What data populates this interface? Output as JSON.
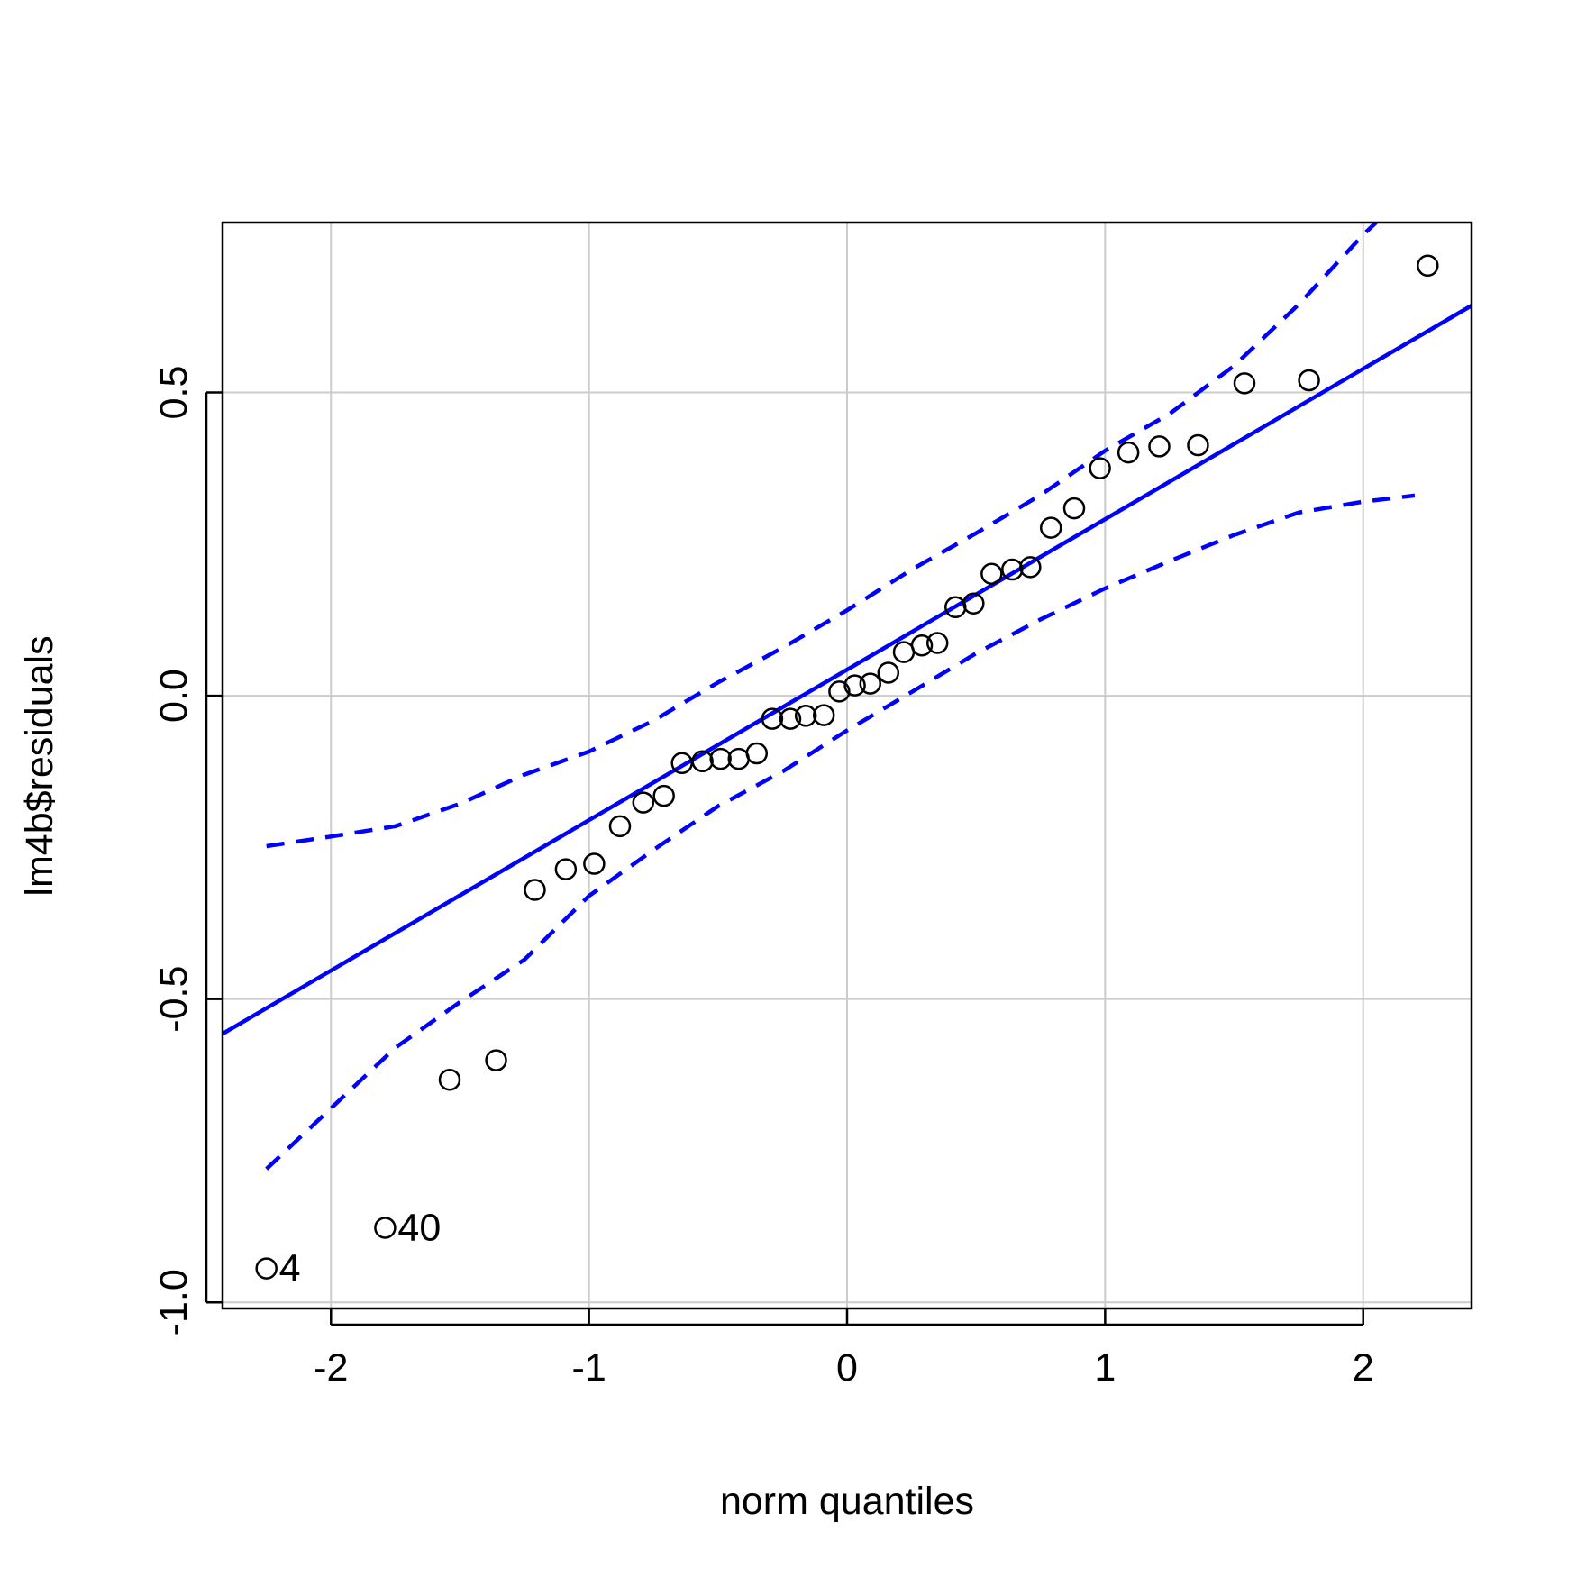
{
  "chart_data": {
    "type": "scatter",
    "title": "",
    "xlabel": "norm quantiles",
    "ylabel": "lm4b$residuals",
    "xlim": [
      -2.42,
      2.42
    ],
    "ylim": [
      -1.01,
      0.78
    ],
    "x_ticks": [
      -2,
      -1,
      0,
      1,
      2
    ],
    "x_tick_labels": [
      "-2",
      "-1",
      "0",
      "1",
      "2"
    ],
    "y_ticks": [
      -1.0,
      -0.5,
      0.0,
      0.5
    ],
    "y_tick_labels": [
      "-1.0",
      "-0.5",
      "0.0",
      "0.5"
    ],
    "grid": true,
    "grid_color": "#cccccc",
    "point_color": "#000000",
    "line_color": "#0000ff",
    "points": [
      {
        "x": -2.25,
        "y": -0.944
      },
      {
        "x": -1.79,
        "y": -0.877
      },
      {
        "x": -1.54,
        "y": -0.633
      },
      {
        "x": -1.36,
        "y": -0.601
      },
      {
        "x": -1.21,
        "y": -0.32
      },
      {
        "x": -1.09,
        "y": -0.286
      },
      {
        "x": -0.98,
        "y": -0.277
      },
      {
        "x": -0.88,
        "y": -0.215
      },
      {
        "x": -0.79,
        "y": -0.176
      },
      {
        "x": -0.71,
        "y": -0.165
      },
      {
        "x": -0.64,
        "y": -0.111
      },
      {
        "x": -0.56,
        "y": -0.108
      },
      {
        "x": -0.49,
        "y": -0.104
      },
      {
        "x": -0.42,
        "y": -0.104
      },
      {
        "x": -0.35,
        "y": -0.095
      },
      {
        "x": -0.29,
        "y": -0.038
      },
      {
        "x": -0.22,
        "y": -0.038
      },
      {
        "x": -0.16,
        "y": -0.033
      },
      {
        "x": -0.09,
        "y": -0.032
      },
      {
        "x": -0.03,
        "y": 0.007
      },
      {
        "x": 0.03,
        "y": 0.017
      },
      {
        "x": 0.09,
        "y": 0.02
      },
      {
        "x": 0.16,
        "y": 0.038
      },
      {
        "x": 0.22,
        "y": 0.072
      },
      {
        "x": 0.29,
        "y": 0.083
      },
      {
        "x": 0.35,
        "y": 0.087
      },
      {
        "x": 0.42,
        "y": 0.146
      },
      {
        "x": 0.49,
        "y": 0.152
      },
      {
        "x": 0.56,
        "y": 0.201
      },
      {
        "x": 0.64,
        "y": 0.208
      },
      {
        "x": 0.71,
        "y": 0.212
      },
      {
        "x": 0.79,
        "y": 0.277
      },
      {
        "x": 0.88,
        "y": 0.309
      },
      {
        "x": 0.98,
        "y": 0.375
      },
      {
        "x": 1.09,
        "y": 0.401
      },
      {
        "x": 1.21,
        "y": 0.411
      },
      {
        "x": 1.36,
        "y": 0.413
      },
      {
        "x": 1.54,
        "y": 0.515
      },
      {
        "x": 1.79,
        "y": 0.52
      },
      {
        "x": 2.25,
        "y": 0.709
      }
    ],
    "point_labels": [
      {
        "text": "4",
        "x": -2.25,
        "y": -0.944
      },
      {
        "text": "40",
        "x": -1.79,
        "y": -0.877
      }
    ],
    "reference_line": {
      "intercept": 0.043,
      "slope": 0.248
    },
    "confidence_upper": [
      {
        "x": -2.25,
        "y": -0.248
      },
      {
        "x": -2.0,
        "y": -0.232
      },
      {
        "x": -1.75,
        "y": -0.215
      },
      {
        "x": -1.5,
        "y": -0.178
      },
      {
        "x": -1.25,
        "y": -0.13
      },
      {
        "x": -1.0,
        "y": -0.092
      },
      {
        "x": -0.75,
        "y": -0.041
      },
      {
        "x": -0.5,
        "y": 0.022
      },
      {
        "x": -0.25,
        "y": 0.079
      },
      {
        "x": 0.0,
        "y": 0.141
      },
      {
        "x": 0.25,
        "y": 0.208
      },
      {
        "x": 0.5,
        "y": 0.268
      },
      {
        "x": 0.75,
        "y": 0.331
      },
      {
        "x": 1.0,
        "y": 0.404
      },
      {
        "x": 1.25,
        "y": 0.465
      },
      {
        "x": 1.5,
        "y": 0.544
      },
      {
        "x": 1.75,
        "y": 0.645
      },
      {
        "x": 2.0,
        "y": 0.76
      },
      {
        "x": 2.05,
        "y": 0.78
      }
    ],
    "confidence_lower": [
      {
        "x": -2.25,
        "y": -0.78
      },
      {
        "x": -2.0,
        "y": -0.68
      },
      {
        "x": -1.75,
        "y": -0.58
      },
      {
        "x": -1.5,
        "y": -0.505
      },
      {
        "x": -1.25,
        "y": -0.435
      },
      {
        "x": -1.0,
        "y": -0.33
      },
      {
        "x": -0.75,
        "y": -0.254
      },
      {
        "x": -0.5,
        "y": -0.182
      },
      {
        "x": -0.25,
        "y": -0.125
      },
      {
        "x": 0.0,
        "y": -0.057
      },
      {
        "x": 0.25,
        "y": 0.006
      },
      {
        "x": 0.5,
        "y": 0.07
      },
      {
        "x": 0.75,
        "y": 0.126
      },
      {
        "x": 1.0,
        "y": 0.177
      },
      {
        "x": 1.25,
        "y": 0.222
      },
      {
        "x": 1.5,
        "y": 0.265
      },
      {
        "x": 1.75,
        "y": 0.302
      },
      {
        "x": 2.0,
        "y": 0.32
      },
      {
        "x": 2.2,
        "y": 0.33
      }
    ]
  }
}
